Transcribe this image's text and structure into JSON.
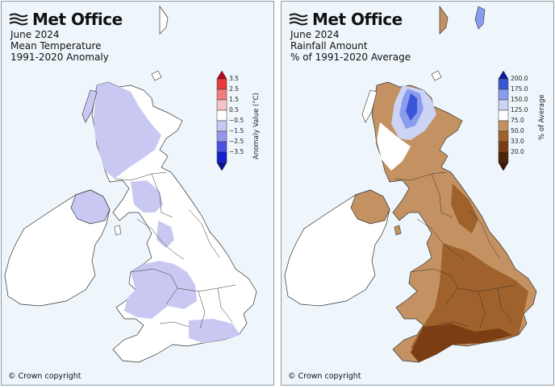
{
  "brand": "Met Office",
  "copyright": "© Crown copyright",
  "maps": [
    {
      "title_lines": [
        "June 2024",
        "Mean Temperature",
        "1991-2020 Anomaly"
      ],
      "legend": {
        "title": "Anomaly Value (°C)",
        "tick_labels": [
          "3.5",
          "2.5",
          "1.5",
          "0.5",
          "−0.5",
          "−1.5",
          "−2.5",
          "−3.5"
        ],
        "colors": [
          "#b2071a",
          "#e8393d",
          "#f27c80",
          "#f8c4c6",
          "#ffffff",
          "#c8c8f2",
          "#9696ee",
          "#4a50e8",
          "#1420d0",
          "#0a1290"
        ]
      }
    },
    {
      "title_lines": [
        "June 2024",
        "Rainfall Amount",
        "% of 1991-2020 Average"
      ],
      "legend": {
        "title": "% of Average",
        "tick_labels": [
          "200.0",
          "175.0",
          "150.0",
          "125.0",
          "75.0",
          "50.0",
          "33.0",
          "20.0"
        ],
        "colors": [
          "#0a1a9a",
          "#3a56d6",
          "#8a9cee",
          "#ccd4f6",
          "#ffffff",
          "#c49262",
          "#a0622c",
          "#7a3e12",
          "#4e2408",
          "#3a1606"
        ]
      }
    }
  ]
}
